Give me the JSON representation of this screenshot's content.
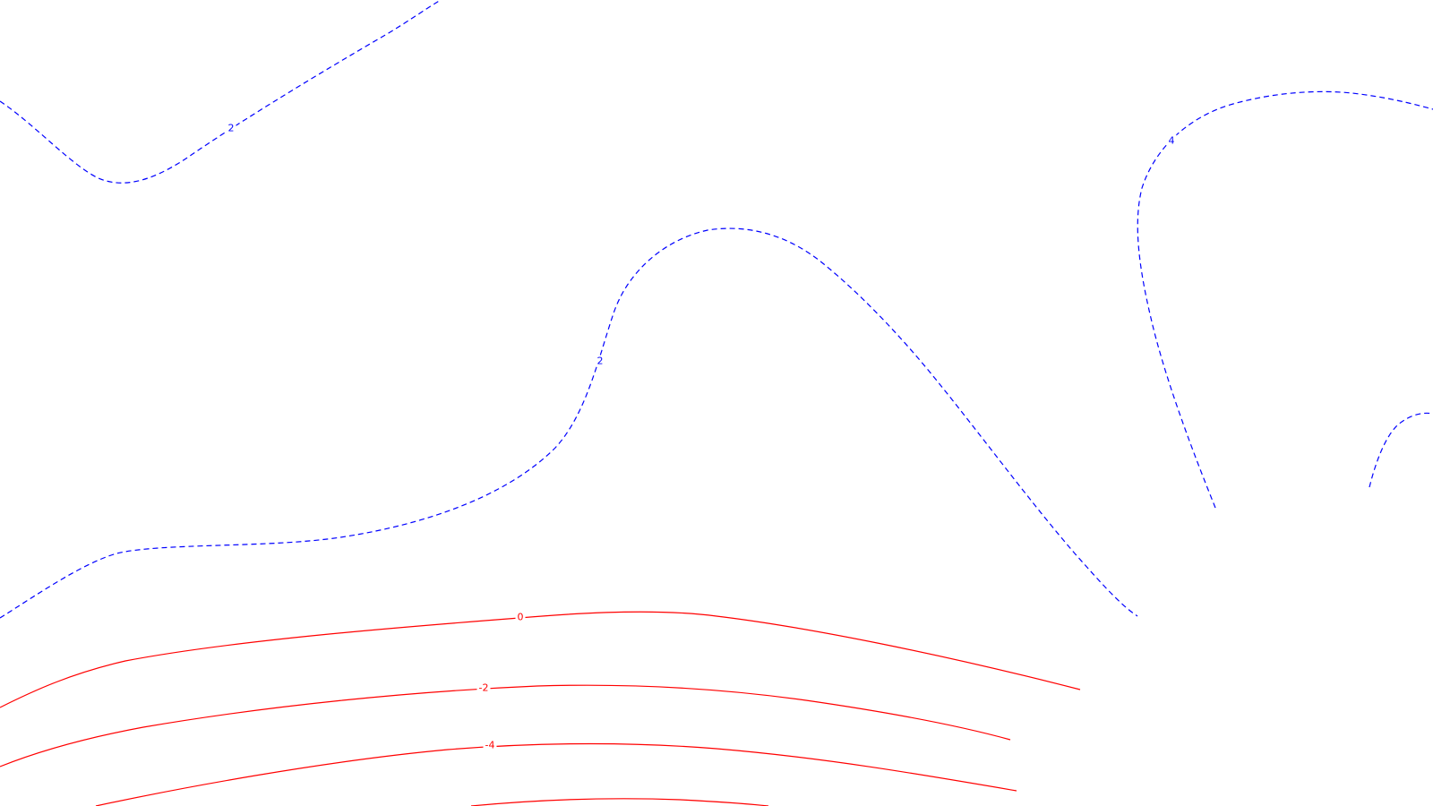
{
  "map": {
    "background": "#ffffff",
    "positive_color": "#0000ff",
    "negative_color": "#ff0000",
    "positive_style": "dashed",
    "negative_style": "solid"
  },
  "contours": [
    {
      "id": "blue-2-top-left",
      "level": 2,
      "label": "2",
      "color": "#0000ff"
    },
    {
      "id": "blue-2-center",
      "level": 2,
      "label": "2",
      "color": "#0000ff"
    },
    {
      "id": "blue-4-right",
      "level": 4,
      "label": "4",
      "color": "#0000ff"
    },
    {
      "id": "blue-far-right",
      "level": null,
      "label": "",
      "color": "#0000ff"
    },
    {
      "id": "red-0",
      "level": 0,
      "label": "0",
      "color": "#ff0000"
    },
    {
      "id": "red-neg2",
      "level": -2,
      "label": "-2",
      "color": "#ff0000"
    },
    {
      "id": "red-neg4",
      "level": -4,
      "label": "-4",
      "color": "#ff0000"
    },
    {
      "id": "red-bottom",
      "level": null,
      "label": "",
      "color": "#ff0000"
    }
  ]
}
